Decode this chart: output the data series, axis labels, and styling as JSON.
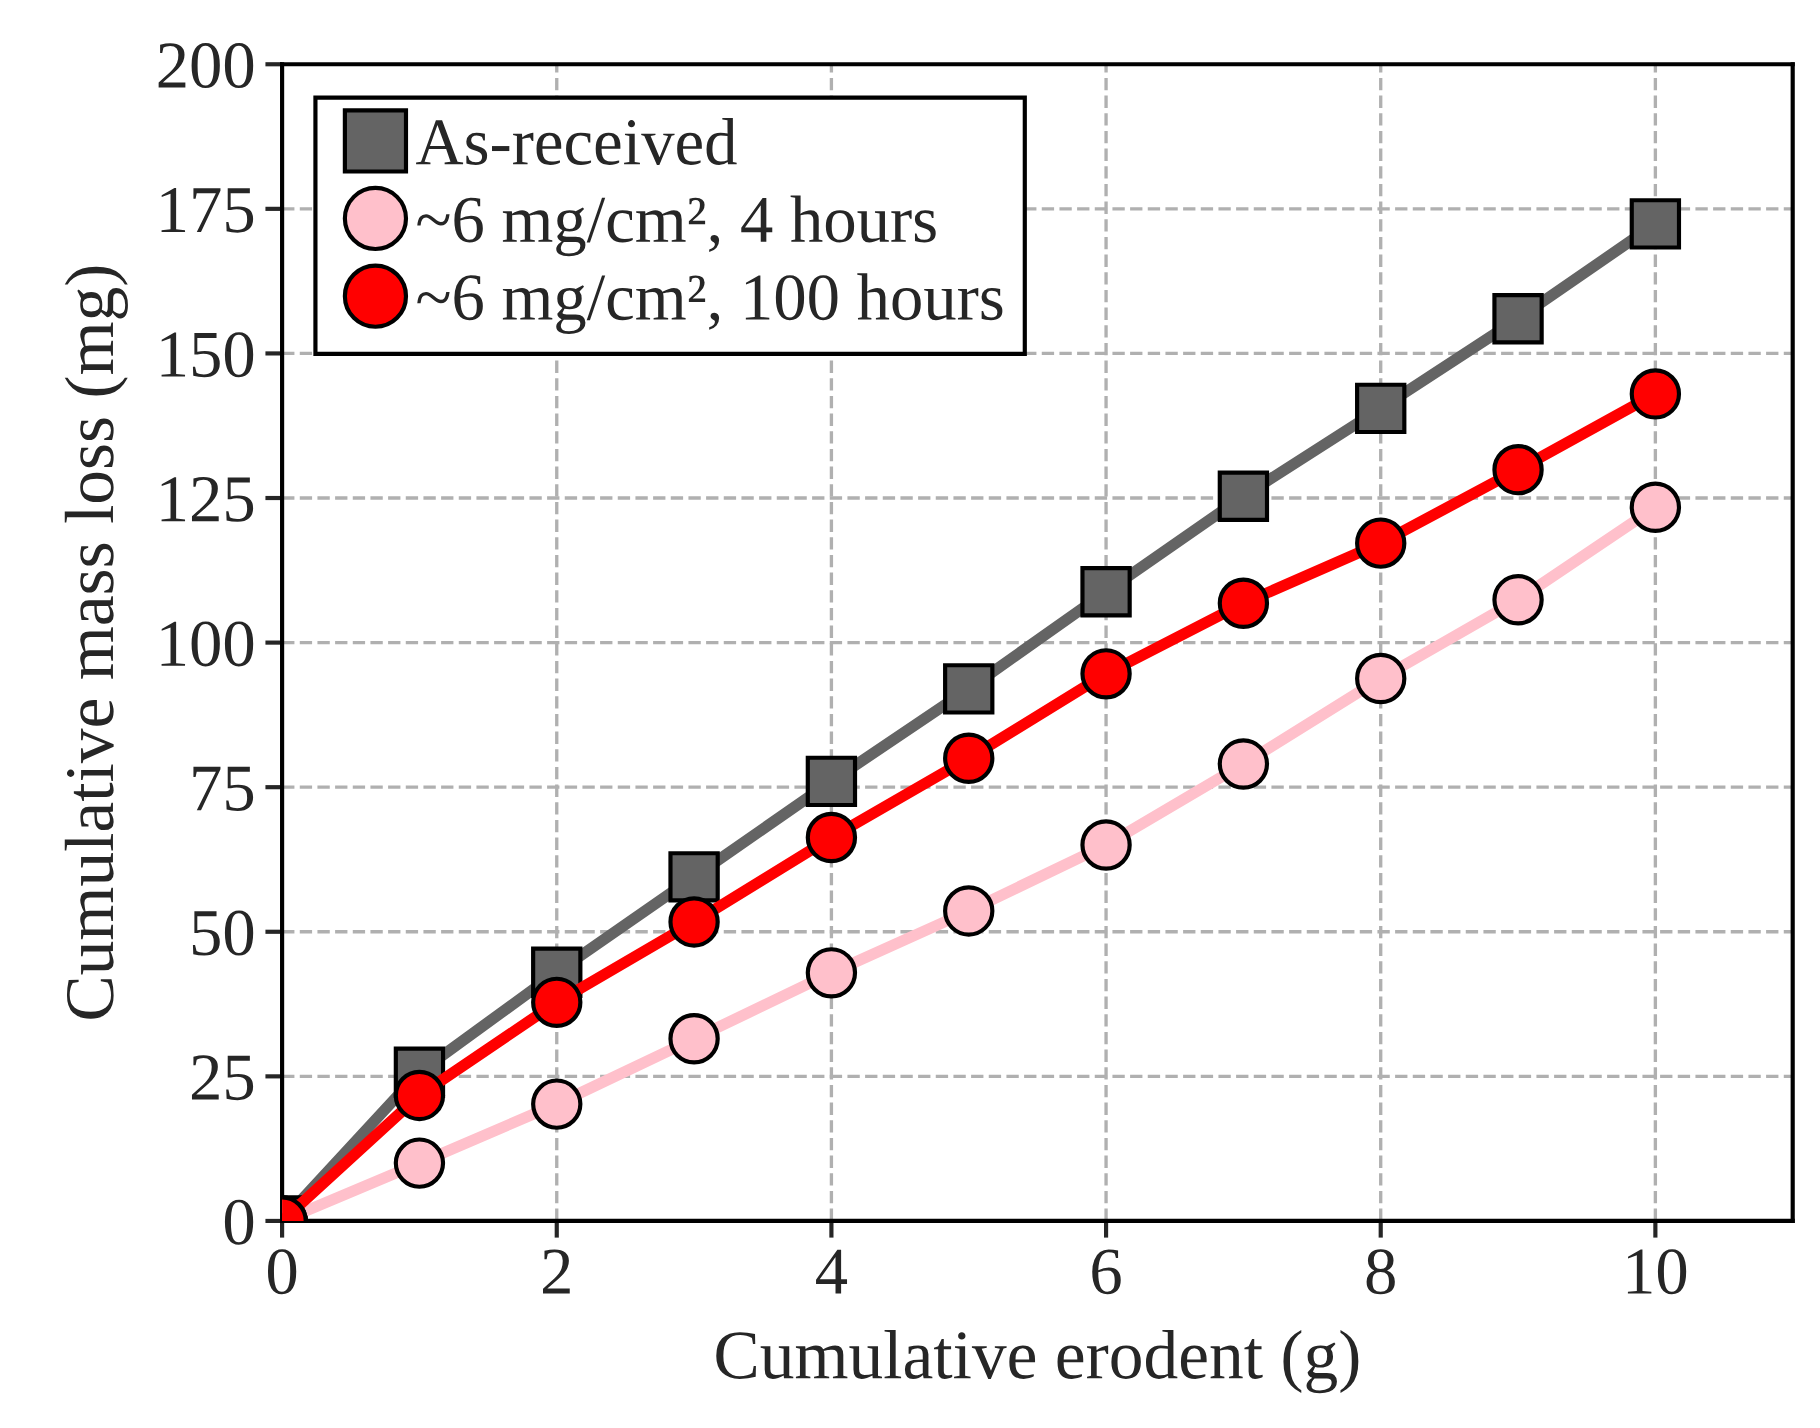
{
  "chart_data": {
    "type": "line",
    "xlabel": "Cumulative erodent (g)",
    "ylabel": "Cumulative mass loss (mg)",
    "x": [
      0,
      1,
      2,
      3,
      4,
      5,
      6,
      7,
      8,
      9,
      10
    ],
    "series": [
      {
        "name": "As-received",
        "color": "#646464",
        "marker": "square",
        "values": [
          0,
          25.7,
          43,
          59.5,
          76,
          92,
          108.8,
          125.3,
          140.5,
          156,
          172.4
        ]
      },
      {
        "name": "~6 mg/cm², 4 hours",
        "color": "#ffc0cb",
        "marker": "circle",
        "values": [
          0,
          10,
          20.2,
          31.5,
          42.9,
          53.6,
          65,
          79,
          93.8,
          107.4,
          123.4
        ]
      },
      {
        "name": "~6 mg/cm², 100 hours",
        "color": "#ff0000",
        "marker": "circle",
        "values": [
          0,
          21.7,
          37.8,
          51.7,
          66.3,
          80,
          94.6,
          106.8,
          117.2,
          129.9,
          143
        ]
      }
    ],
    "xlim": [
      0,
      11
    ],
    "xticks": [
      0,
      2,
      4,
      6,
      8,
      10
    ],
    "ylim": [
      0,
      200
    ],
    "yticks": [
      0,
      25,
      50,
      75,
      100,
      125,
      150,
      175,
      200
    ],
    "grid": true,
    "legend": "top left",
    "line_style": "solid"
  }
}
